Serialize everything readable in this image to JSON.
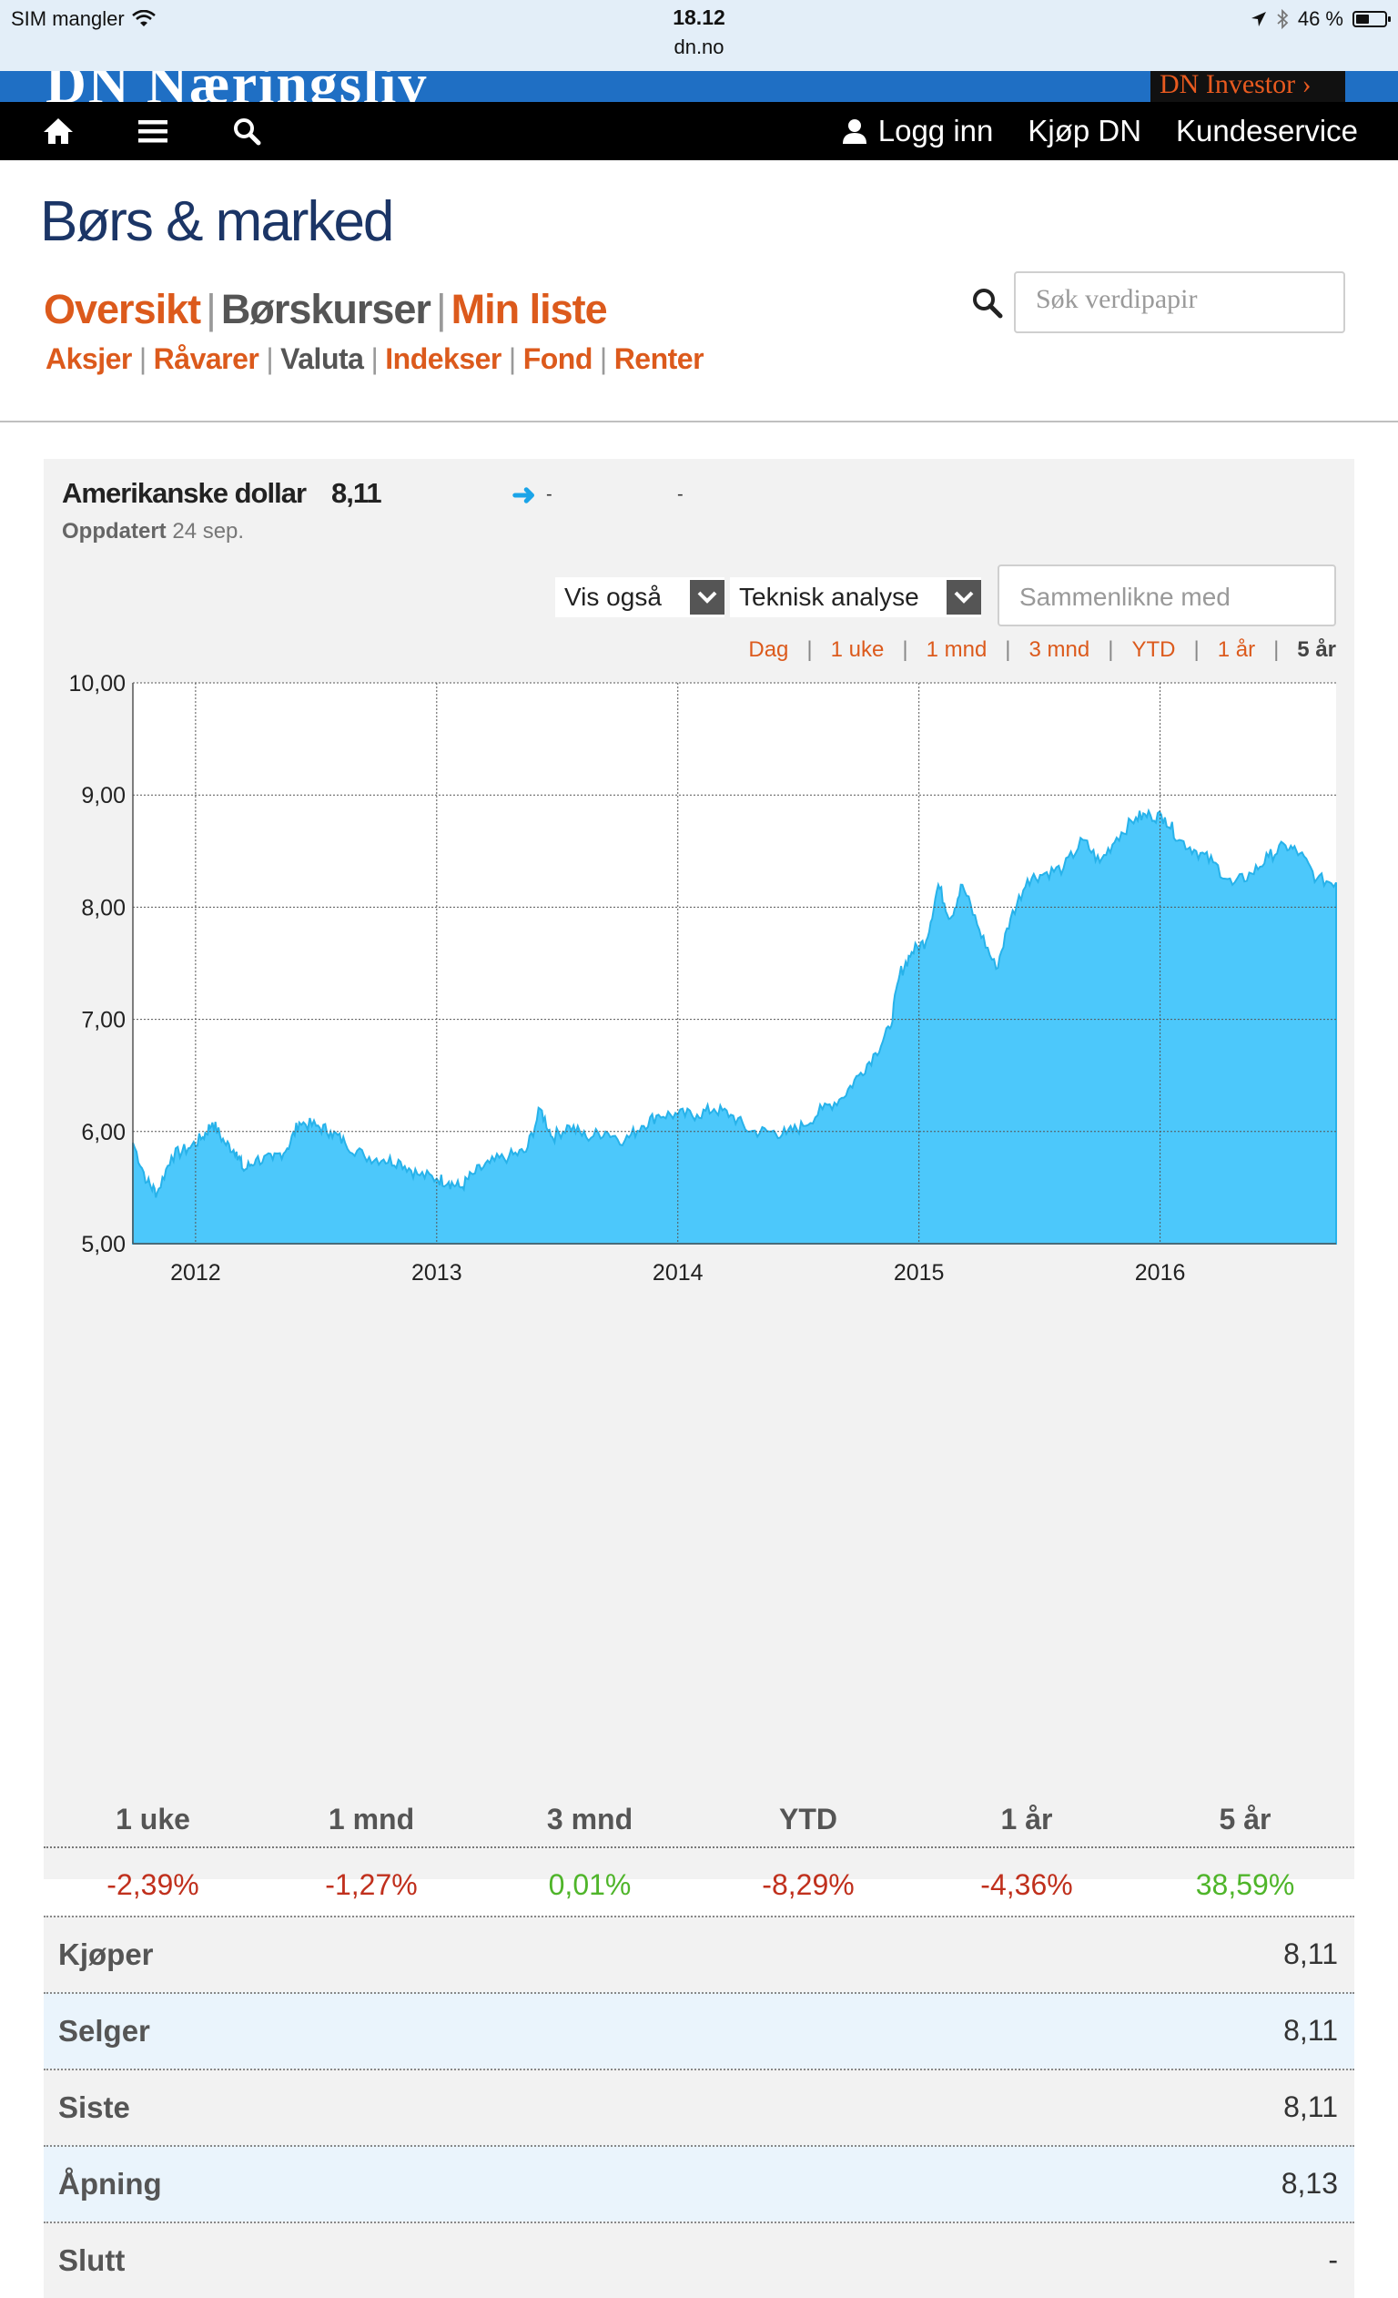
{
  "status": {
    "carrier": "SIM mangler",
    "time": "18.12",
    "url": "dn.no",
    "battery": "46 %"
  },
  "banner": {
    "logo": "DN Næringsliv",
    "investor": "DN Investor"
  },
  "topnav": {
    "login": "Logg inn",
    "buy": "Kjøp DN",
    "service": "Kundeservice"
  },
  "page": {
    "title": "Børs & marked",
    "main_nav": [
      "Oversikt",
      "Børskurser",
      "Min liste"
    ],
    "sub_nav": [
      "Aksjer",
      "Råvarer",
      "Valuta",
      "Indekser",
      "Fond",
      "Renter"
    ],
    "search_placeholder": "Søk verdipapir"
  },
  "instrument": {
    "name": "Amerikanske dollar",
    "value": "8,11",
    "change": "-",
    "change_pct": "-",
    "updated_label": "Oppdatert",
    "updated_date": "24 sep."
  },
  "controls": {
    "vis_ogsa": "Vis også",
    "teknisk": "Teknisk analyse",
    "compare_placeholder": "Sammenlikne med",
    "ranges": [
      "Dag",
      "1 uke",
      "1 mnd",
      "3 mnd",
      "YTD",
      "1 år",
      "5 år"
    ],
    "active_range": "5 år"
  },
  "chart_data": {
    "type": "area",
    "x_ticks": [
      "2012",
      "2013",
      "2014",
      "2015",
      "2016"
    ],
    "y_ticks": [
      "10,00",
      "9,00",
      "8,00",
      "7,00",
      "6,00",
      "5,00"
    ],
    "ylim": [
      5,
      10
    ],
    "xlim": [
      2011.74,
      2016.73
    ],
    "grid": true,
    "color": "#4cc8fb",
    "points": [
      [
        2011.74,
        5.9
      ],
      [
        2011.8,
        5.55
      ],
      [
        2011.84,
        5.45
      ],
      [
        2011.9,
        5.78
      ],
      [
        2011.97,
        5.85
      ],
      [
        2012.03,
        5.95
      ],
      [
        2012.07,
        6.08
      ],
      [
        2012.12,
        5.9
      ],
      [
        2012.17,
        5.82
      ],
      [
        2012.2,
        5.65
      ],
      [
        2012.25,
        5.75
      ],
      [
        2012.32,
        5.75
      ],
      [
        2012.38,
        5.85
      ],
      [
        2012.43,
        6.08
      ],
      [
        2012.5,
        6.05
      ],
      [
        2012.56,
        6.0
      ],
      [
        2012.62,
        5.9
      ],
      [
        2012.7,
        5.78
      ],
      [
        2012.78,
        5.75
      ],
      [
        2012.85,
        5.73
      ],
      [
        2012.92,
        5.62
      ],
      [
        2013.0,
        5.58
      ],
      [
        2013.05,
        5.55
      ],
      [
        2013.1,
        5.5
      ],
      [
        2013.15,
        5.62
      ],
      [
        2013.22,
        5.72
      ],
      [
        2013.3,
        5.78
      ],
      [
        2013.37,
        5.82
      ],
      [
        2013.43,
        6.2
      ],
      [
        2013.48,
        5.95
      ],
      [
        2013.55,
        6.05
      ],
      [
        2013.62,
        5.95
      ],
      [
        2013.7,
        6.0
      ],
      [
        2013.78,
        5.92
      ],
      [
        2013.85,
        6.05
      ],
      [
        2013.92,
        6.15
      ],
      [
        2014.0,
        6.15
      ],
      [
        2014.08,
        6.15
      ],
      [
        2014.15,
        6.2
      ],
      [
        2014.22,
        6.15
      ],
      [
        2014.3,
        6.0
      ],
      [
        2014.38,
        6.0
      ],
      [
        2014.45,
        5.98
      ],
      [
        2014.52,
        6.05
      ],
      [
        2014.6,
        6.2
      ],
      [
        2014.68,
        6.3
      ],
      [
        2014.75,
        6.5
      ],
      [
        2014.82,
        6.7
      ],
      [
        2014.88,
        6.92
      ],
      [
        2014.92,
        7.4
      ],
      [
        2014.97,
        7.6
      ],
      [
        2015.03,
        7.7
      ],
      [
        2015.08,
        8.2
      ],
      [
        2015.13,
        7.9
      ],
      [
        2015.18,
        8.2
      ],
      [
        2015.25,
        7.8
      ],
      [
        2015.32,
        7.45
      ],
      [
        2015.38,
        7.9
      ],
      [
        2015.45,
        8.25
      ],
      [
        2015.52,
        8.3
      ],
      [
        2015.6,
        8.35
      ],
      [
        2015.68,
        8.6
      ],
      [
        2015.75,
        8.4
      ],
      [
        2015.82,
        8.62
      ],
      [
        2015.9,
        8.8
      ],
      [
        2015.96,
        8.82
      ],
      [
        2016.02,
        8.8
      ],
      [
        2016.08,
        8.6
      ],
      [
        2016.15,
        8.5
      ],
      [
        2016.22,
        8.4
      ],
      [
        2016.3,
        8.2
      ],
      [
        2016.38,
        8.3
      ],
      [
        2016.45,
        8.45
      ],
      [
        2016.52,
        8.55
      ],
      [
        2016.58,
        8.48
      ],
      [
        2016.65,
        8.25
      ],
      [
        2016.73,
        8.22
      ]
    ]
  },
  "performance": {
    "headers": [
      "1 uke",
      "1 mnd",
      "3 mnd",
      "YTD",
      "1 år",
      "5 år"
    ],
    "values": [
      "-2,39%",
      "-1,27%",
      "0,01%",
      "-8,29%",
      "-4,36%",
      "38,59%"
    ],
    "colors": [
      "#c0301d",
      "#c0301d",
      "#4fb52a",
      "#c0301d",
      "#c0301d",
      "#4fb52a"
    ]
  },
  "quote_rows": [
    {
      "label": "Kjøper",
      "value": "8,11"
    },
    {
      "label": "Selger",
      "value": "8,11"
    },
    {
      "label": "Siste",
      "value": "8,11"
    },
    {
      "label": "Åpning",
      "value": "8,13"
    },
    {
      "label": "Slutt",
      "value": "-"
    }
  ]
}
